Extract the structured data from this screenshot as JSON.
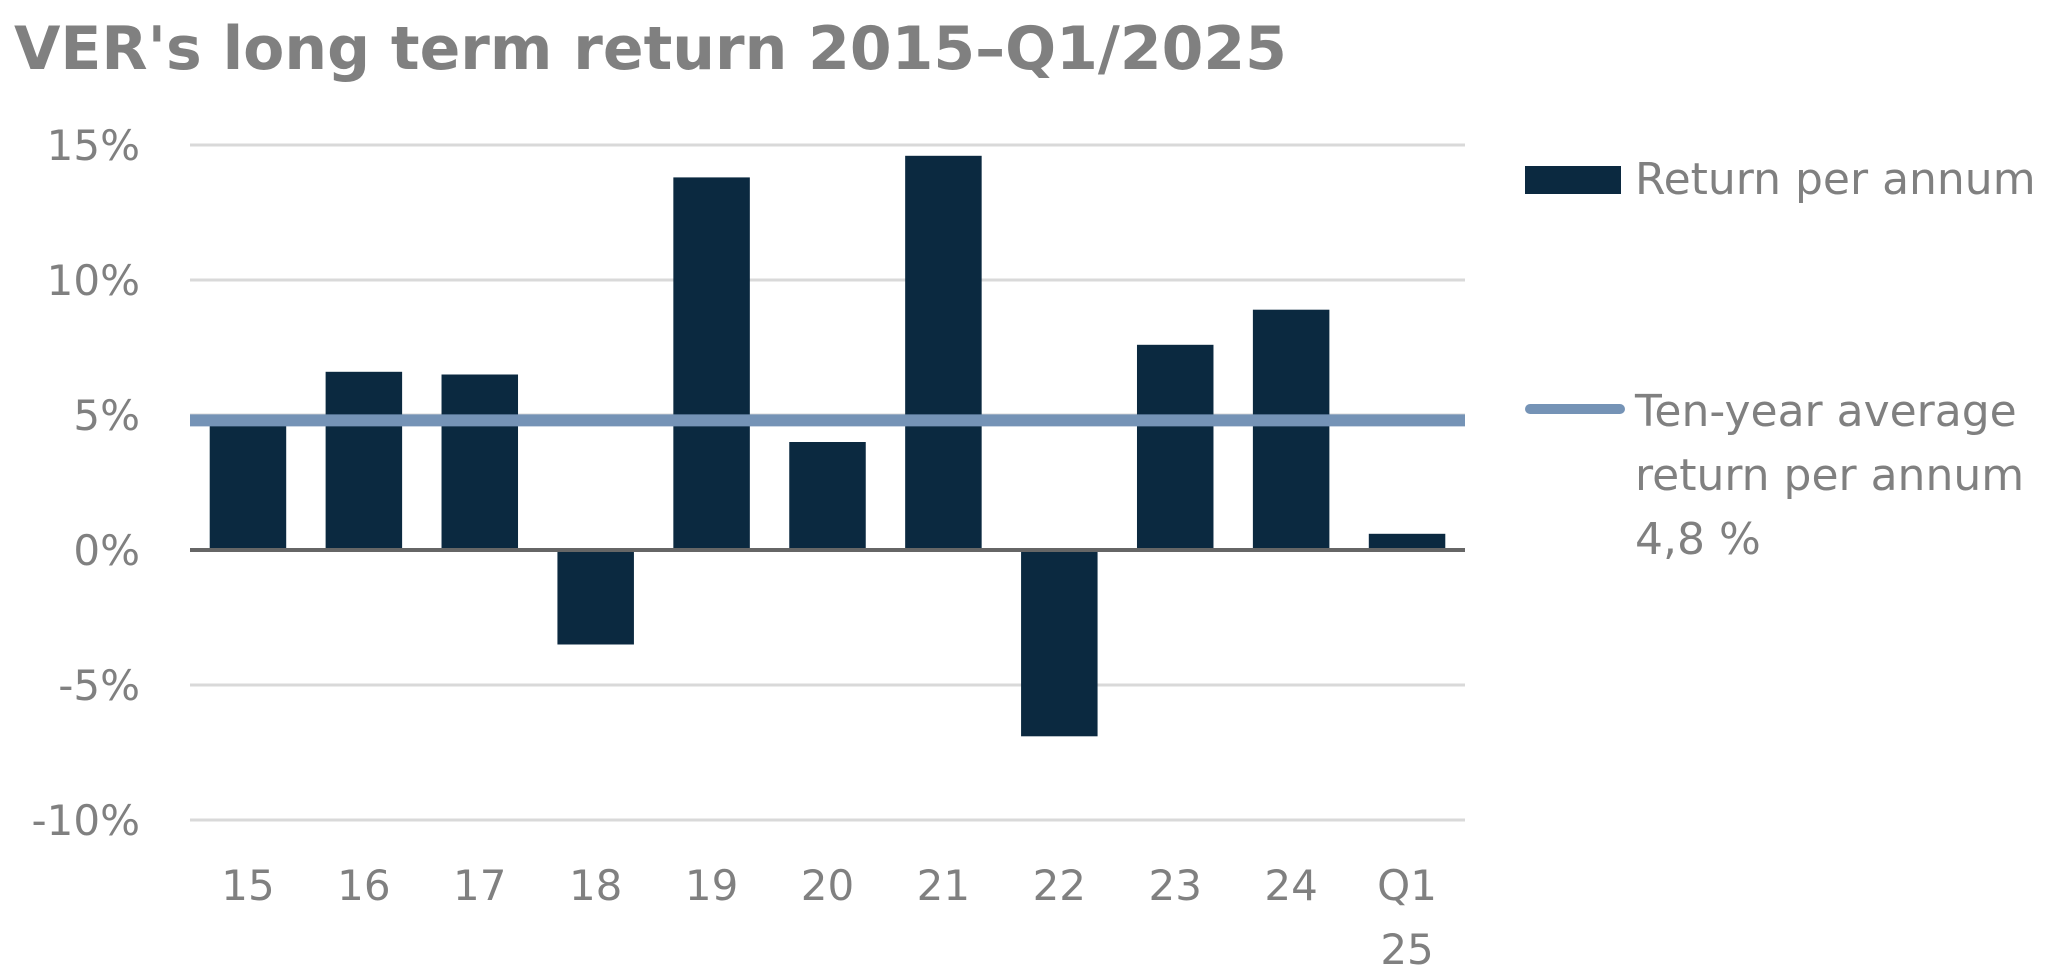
{
  "chart_data": {
    "type": "bar",
    "title": "VER's long term return 2015–Q1/2025",
    "categories": [
      "15",
      "16",
      "17",
      "18",
      "19",
      "20",
      "21",
      "22",
      "23",
      "24",
      "Q1 25"
    ],
    "series": [
      {
        "name": "Return per annum",
        "type": "bar",
        "color": "#0b2940",
        "values": [
          4.8,
          6.6,
          6.5,
          -3.5,
          13.8,
          4.0,
          14.6,
          -6.9,
          7.6,
          8.9,
          0.6
        ]
      },
      {
        "name": "Ten-year average\nreturn per annum\n4,8 %",
        "type": "line",
        "color": "#7593b6",
        "value": 4.8
      }
    ],
    "ylim": [
      -10,
      15
    ],
    "yticks": [
      15,
      10,
      5,
      0,
      -5,
      -10
    ],
    "ytick_labels": [
      "15%",
      "10%",
      "5%",
      "0%",
      "-5%",
      "-10%"
    ],
    "xlabel": "",
    "ylabel": "",
    "grid": true,
    "legend_position": "right"
  }
}
